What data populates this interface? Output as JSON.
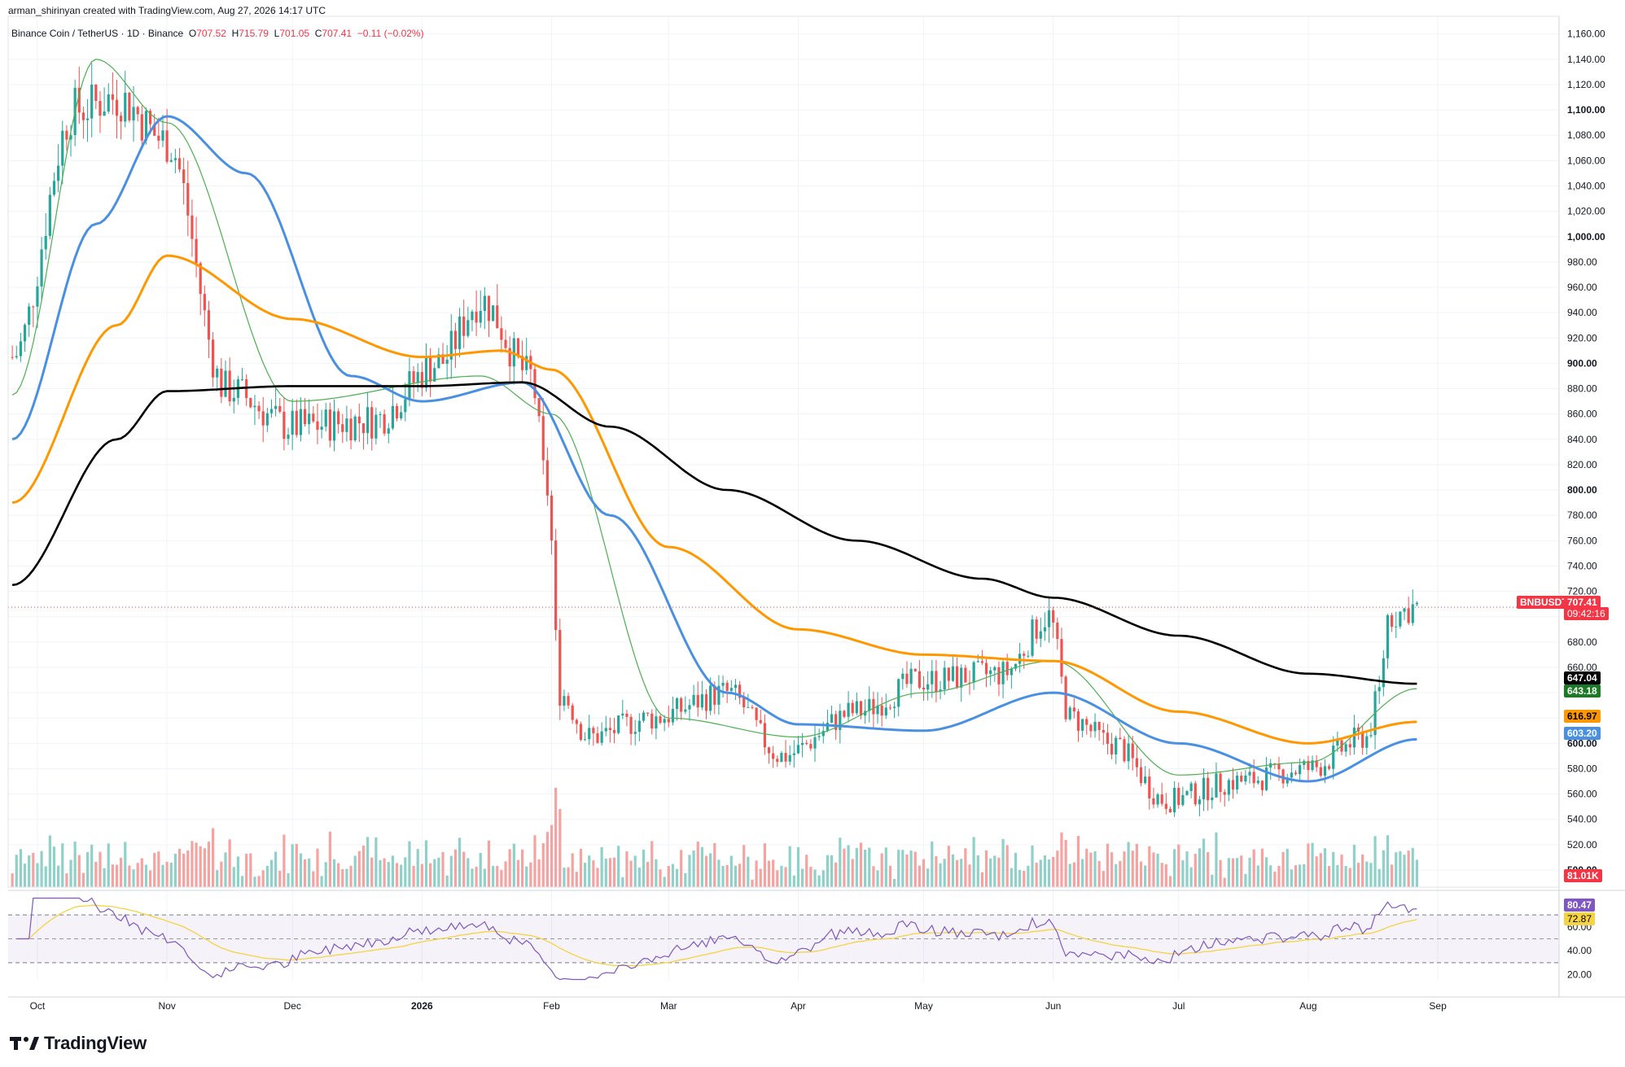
{
  "header": {
    "credit": "arman_shirinyan created with TradingView.com, Aug 27, 2026 14:17 UTC"
  },
  "legend": {
    "symbol": "Binance Coin / TetherUS · 1D · Binance",
    "open_label": "O",
    "open": "707.52",
    "high_label": "H",
    "high": "715.79",
    "low_label": "L",
    "low": "701.05",
    "close_label": "C",
    "close": "707.41",
    "change": "−0.11 (−0.02%)"
  },
  "price_labels": {
    "ticker": "BNBUSDT",
    "last": "707.41",
    "countdown": "09:42:16",
    "ma200": "647.04",
    "ma20": "643.18",
    "ma100": "616.97",
    "ma50": "603.20",
    "volume": "81.01K",
    "rsi": "80.47",
    "rsi_ma": "72.87"
  },
  "colors": {
    "up": "#26a69a",
    "down": "#ef5350",
    "up_vol": "#8fd1c8",
    "down_vol": "#f5a3a1",
    "ma20": "#4caf50",
    "ma50": "#4a90e2",
    "ma100": "#ff9800",
    "ma200": "#000000",
    "rsi": "#7e57c2",
    "rsi_ma": "#f5d342",
    "last_price": "#f23645"
  },
  "logo": {
    "text": "TradingView"
  },
  "chart_data": {
    "type": "candlestick",
    "price_axis": {
      "ticks": [
        "500.00",
        "520.00",
        "540.00",
        "560.00",
        "580.00",
        "600.00",
        "620.00",
        "640.00",
        "660.00",
        "680.00",
        "700.00",
        "720.00",
        "740.00",
        "760.00",
        "780.00",
        "800.00",
        "820.00",
        "840.00",
        "860.00",
        "880.00",
        "900.00",
        "920.00",
        "940.00",
        "960.00",
        "980.00",
        "1,000.00",
        "1,020.00",
        "1,040.00",
        "1,060.00",
        "1,080.00",
        "1,100.00",
        "1,120.00",
        "1,140.00",
        "1,160.00"
      ],
      "ylim": [
        490,
        1170
      ]
    },
    "rsi_axis": {
      "ticks": [
        "20.00",
        "40.00",
        "60.00"
      ],
      "ylim": [
        15,
        85
      ],
      "band": [
        30,
        70
      ]
    },
    "time_axis": {
      "labels": [
        "Oct",
        "Nov",
        "Dec",
        "2026",
        "Feb",
        "Mar",
        "Apr",
        "May",
        "Jun",
        "Jul",
        "Aug",
        "Sep"
      ]
    },
    "series_path": {
      "dates": [
        "2025-09-25",
        "2025-10-10",
        "2025-10-20",
        "2025-11-01",
        "2025-11-15",
        "2025-12-01",
        "2025-12-20",
        "2026-01-05",
        "2026-01-15",
        "2026-01-27",
        "2026-01-31",
        "2026-02-03",
        "2026-02-10",
        "2026-02-25",
        "2026-03-15",
        "2026-03-28",
        "2026-04-15",
        "2026-05-01",
        "2026-05-20",
        "2026-05-31",
        "2026-06-05",
        "2026-06-15",
        "2026-06-28",
        "2026-07-15",
        "2026-08-01",
        "2026-08-15",
        "2026-08-18",
        "2026-08-20",
        "2026-08-27"
      ],
      "close": [
        905,
        1100,
        1110,
        1075,
        880,
        850,
        855,
        900,
        950,
        890,
        800,
        640,
        605,
        620,
        640,
        590,
        625,
        650,
        655,
        700,
        620,
        600,
        555,
        570,
        580,
        605,
        640,
        700,
        707.41
      ]
    },
    "moving_averages": [
      {
        "ma": "20",
        "dates": [
          "2025-09-25",
          "2025-10-15",
          "2025-11-01",
          "2025-12-01",
          "2026-01-15",
          "2026-02-01",
          "2026-03-01",
          "2026-04-01",
          "2026-05-01",
          "2026-06-01",
          "2026-07-01",
          "2026-08-01",
          "2026-08-27"
        ],
        "values": [
          875,
          1140,
          1090,
          870,
          890,
          860,
          620,
          605,
          640,
          665,
          575,
          585,
          643.18
        ]
      },
      {
        "ma": "50",
        "dates": [
          "2025-09-25",
          "2025-10-15",
          "2025-11-01",
          "2025-11-20",
          "2025-12-15",
          "2026-01-01",
          "2026-01-25",
          "2026-02-15",
          "2026-03-15",
          "2026-04-01",
          "2026-05-01",
          "2026-06-01",
          "2026-07-01",
          "2026-08-01",
          "2026-08-27"
        ],
        "values": [
          840,
          1010,
          1095,
          1050,
          890,
          870,
          885,
          780,
          640,
          615,
          610,
          640,
          600,
          570,
          603.2
        ]
      },
      {
        "ma": "100",
        "dates": [
          "2025-09-25",
          "2025-10-20",
          "2025-11-01",
          "2025-12-01",
          "2026-01-01",
          "2026-01-20",
          "2026-02-01",
          "2026-03-01",
          "2026-04-01",
          "2026-05-01",
          "2026-06-01",
          "2026-07-01",
          "2026-08-01",
          "2026-08-27"
        ],
        "values": [
          790,
          930,
          985,
          935,
          905,
          910,
          895,
          755,
          690,
          670,
          665,
          625,
          600,
          616.97
        ]
      },
      {
        "ma": "200",
        "dates": [
          "2025-09-25",
          "2025-10-20",
          "2025-11-01",
          "2025-12-01",
          "2026-01-01",
          "2026-01-25",
          "2026-02-15",
          "2026-03-15",
          "2026-04-15",
          "2026-05-15",
          "2026-06-01",
          "2026-07-01",
          "2026-08-01",
          "2026-08-27"
        ],
        "values": [
          725,
          840,
          878,
          882,
          882,
          885,
          850,
          800,
          760,
          730,
          715,
          685,
          655,
          647.04
        ]
      }
    ]
  }
}
